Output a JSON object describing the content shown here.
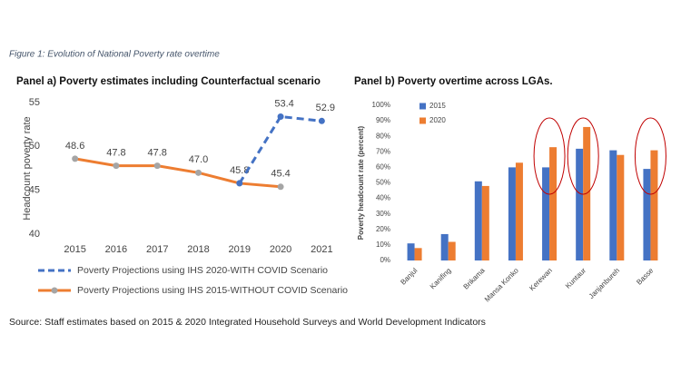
{
  "figure_title": "Figure 1: Evolution of National Poverty rate overtime",
  "source": "Source: Staff estimates based on 2015 & 2020 Integrated Household Surveys and World Development Indicators",
  "chart_data": [
    {
      "type": "line",
      "title": "Panel a) Poverty estimates including Counterfactual scenario",
      "y_label": "Headcount poverty rate",
      "categories": [
        "2015",
        "2016",
        "2017",
        "2018",
        "2019",
        "2020",
        "2021"
      ],
      "series": [
        {
          "name": "Poverty Projections using IHS 2020-WITH COVID Scenario",
          "color": "#4472c4",
          "dashed": true,
          "values": [
            null,
            null,
            null,
            null,
            45.8,
            53.4,
            52.9
          ],
          "value_labels": [
            null,
            null,
            null,
            null,
            null,
            "53.4",
            "52.9"
          ]
        },
        {
          "name": "Poverty Projections using IHS 2015-WITHOUT COVID Scenario",
          "color": "#ed7d31",
          "dashed": false,
          "values": [
            48.6,
            47.8,
            47.8,
            47.0,
            45.8,
            45.4,
            null
          ],
          "value_labels": [
            "48.6",
            "47.8",
            "47.8",
            "47.0",
            "45.8",
            "45.4",
            null
          ]
        }
      ],
      "ylim": [
        40,
        55
      ],
      "yticks": [
        40,
        45,
        50,
        55
      ],
      "grid": false,
      "legend": "bottom"
    },
    {
      "type": "bar",
      "title": "Panel b) Poverty overtime across LGAs.",
      "y_label": "Poverty headcount rate (percent)",
      "categories": [
        "Banjul",
        "Kanifing",
        "Brikama",
        "Mansa Konko",
        "Kerewan",
        "Kuntaur",
        "Janjanbureh",
        "Basse"
      ],
      "series": [
        {
          "name": "2015",
          "color": "#4472c4",
          "values": [
            11,
            17,
            51,
            60,
            60,
            72,
            71,
            59
          ]
        },
        {
          "name": "2020",
          "color": "#ed7d31",
          "values": [
            8,
            12,
            48,
            63,
            73,
            86,
            68,
            71
          ]
        }
      ],
      "ylim": [
        0,
        100
      ],
      "yticks": [
        {
          "value": 0,
          "label": "0%"
        },
        {
          "value": 10,
          "label": "10%"
        },
        {
          "value": 20,
          "label": "20%"
        },
        {
          "value": 30,
          "label": "30%"
        },
        {
          "value": 40,
          "label": "40%"
        },
        {
          "value": 50,
          "label": "50%"
        },
        {
          "value": 60,
          "label": "60%"
        },
        {
          "value": 70,
          "label": "70%"
        },
        {
          "value": 80,
          "label": "80%"
        },
        {
          "value": 90,
          "label": "90%"
        },
        {
          "value": 100,
          "label": "100%"
        }
      ],
      "grid": false,
      "legend": "upper-left",
      "highlight_categories": [
        4,
        5,
        7
      ]
    }
  ]
}
